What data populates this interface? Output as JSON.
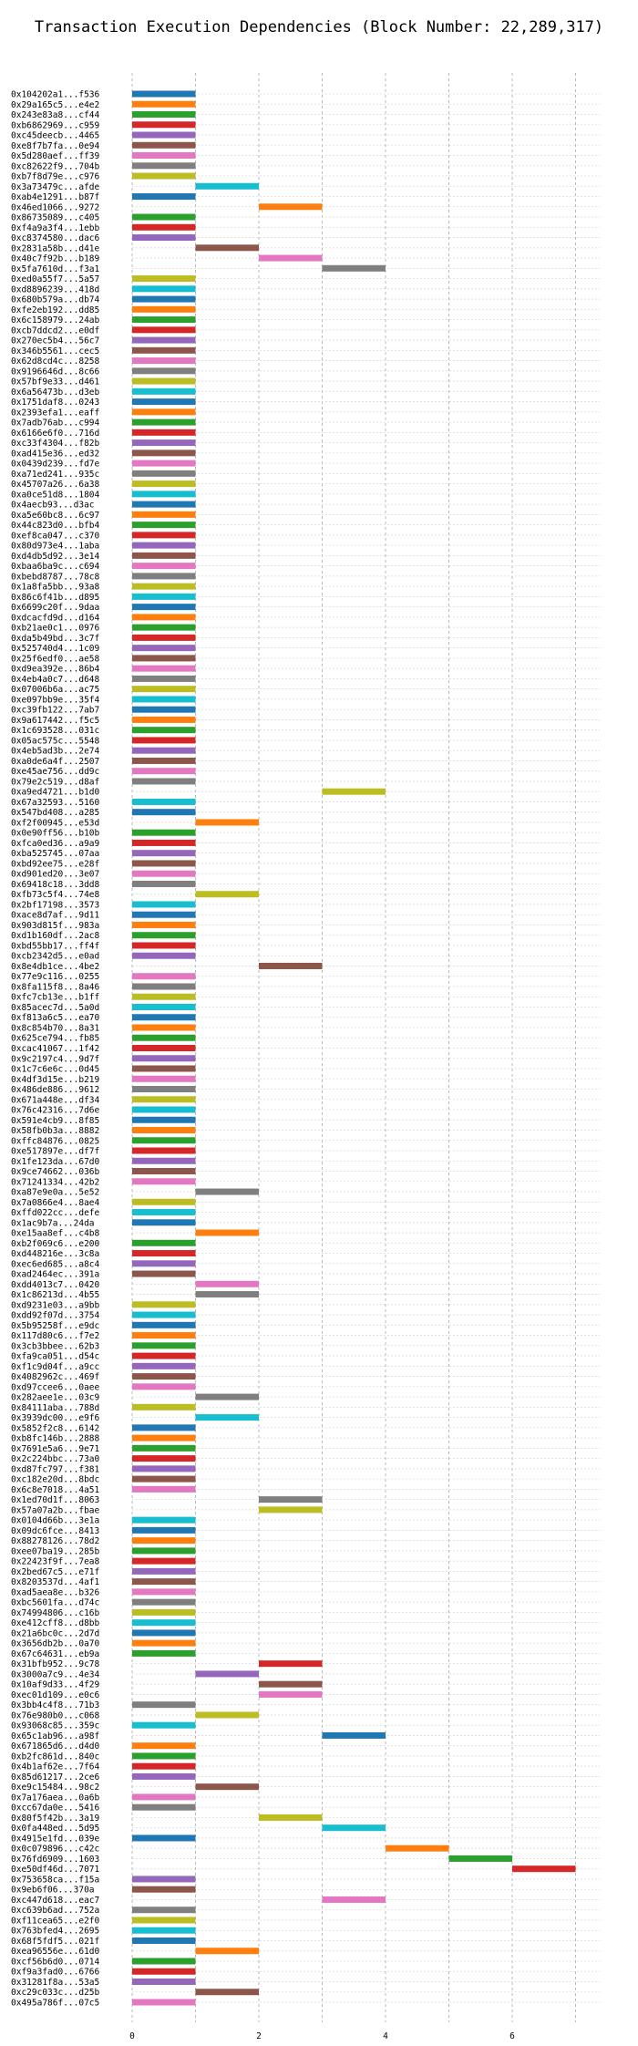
{
  "chart_data": {
    "type": "bar",
    "orientation": "horizontal-gantt",
    "title": "Transaction Execution Dependencies (Block Number: 22,289,317)",
    "xlabel": "",
    "ylabel": "",
    "xlim": [
      0,
      7.5
    ],
    "xticks": [
      0,
      2,
      4,
      6
    ],
    "grid": true,
    "colors": [
      "#1f77b4",
      "#ff7f0e",
      "#2ca02c",
      "#d62728",
      "#9467bd",
      "#8c564b",
      "#e377c2",
      "#7f7f7f",
      "#bcbd22",
      "#17becf"
    ],
    "transactions": [
      {
        "label": "0x104202a1...f536",
        "start": 0,
        "end": 1
      },
      {
        "label": "0x29a165c5...e4e2",
        "start": 0,
        "end": 1
      },
      {
        "label": "0x243e83a8...cf44",
        "start": 0,
        "end": 1
      },
      {
        "label": "0xb6862969...c959",
        "start": 0,
        "end": 1
      },
      {
        "label": "0xc45deecb...4465",
        "start": 0,
        "end": 1
      },
      {
        "label": "0xe8f7b7fa...0e94",
        "start": 0,
        "end": 1
      },
      {
        "label": "0x5d280aef...ff39",
        "start": 0,
        "end": 1
      },
      {
        "label": "0xc82622f9...704b",
        "start": 0,
        "end": 1
      },
      {
        "label": "0xb7f8d79e...c976",
        "start": 0,
        "end": 1
      },
      {
        "label": "0x3a73479c...afde",
        "start": 1,
        "end": 2
      },
      {
        "label": "0xab4e1291...b87f",
        "start": 0,
        "end": 1
      },
      {
        "label": "0x46ed1066...9272",
        "start": 2,
        "end": 3
      },
      {
        "label": "0x86735089...c405",
        "start": 0,
        "end": 1
      },
      {
        "label": "0xf4a9a3f4...1ebb",
        "start": 0,
        "end": 1
      },
      {
        "label": "0xc8374580...dac6",
        "start": 0,
        "end": 1
      },
      {
        "label": "0x2831a58b...d41e",
        "start": 1,
        "end": 2
      },
      {
        "label": "0x40c7f92b...b189",
        "start": 2,
        "end": 3
      },
      {
        "label": "0x5fa7610d...f3a1",
        "start": 3,
        "end": 4
      },
      {
        "label": "0xed0a55f7...5a57",
        "start": 0,
        "end": 1
      },
      {
        "label": "0xd8896239...418d",
        "start": 0,
        "end": 1
      },
      {
        "label": "0x680b579a...db74",
        "start": 0,
        "end": 1
      },
      {
        "label": "0xfe2eb192...dd85",
        "start": 0,
        "end": 1
      },
      {
        "label": "0x6c158979...24ab",
        "start": 0,
        "end": 1
      },
      {
        "label": "0xcb7ddcd2...e0df",
        "start": 0,
        "end": 1
      },
      {
        "label": "0x270ec5b4...56c7",
        "start": 0,
        "end": 1
      },
      {
        "label": "0x346b5561...cec5",
        "start": 0,
        "end": 1
      },
      {
        "label": "0x62d8cd4c...8258",
        "start": 0,
        "end": 1
      },
      {
        "label": "0x9196646d...8c66",
        "start": 0,
        "end": 1
      },
      {
        "label": "0x57bf9e33...d461",
        "start": 0,
        "end": 1
      },
      {
        "label": "0x6a56473b...d3eb",
        "start": 0,
        "end": 1
      },
      {
        "label": "0x1751daf8...0243",
        "start": 0,
        "end": 1
      },
      {
        "label": "0x2393efa1...eaff",
        "start": 0,
        "end": 1
      },
      {
        "label": "0x7adb76ab...c994",
        "start": 0,
        "end": 1
      },
      {
        "label": "0x6166e6f0...716d",
        "start": 0,
        "end": 1
      },
      {
        "label": "0xc33f4304...f82b",
        "start": 0,
        "end": 1
      },
      {
        "label": "0xad415e36...ed32",
        "start": 0,
        "end": 1
      },
      {
        "label": "0x0439d239...fd7e",
        "start": 0,
        "end": 1
      },
      {
        "label": "0xa71ed241...935c",
        "start": 0,
        "end": 1
      },
      {
        "label": "0x45707a26...6a38",
        "start": 0,
        "end": 1
      },
      {
        "label": "0xa0ce51d8...1804",
        "start": 0,
        "end": 1
      },
      {
        "label": "0x4aecb93...d3ac",
        "start": 0,
        "end": 1
      },
      {
        "label": "0xa5e60bc8...6c97",
        "start": 0,
        "end": 1
      },
      {
        "label": "0x44c823d0...bfb4",
        "start": 0,
        "end": 1
      },
      {
        "label": "0xef8ca047...c370",
        "start": 0,
        "end": 1
      },
      {
        "label": "0x80d973e4...1aba",
        "start": 0,
        "end": 1
      },
      {
        "label": "0xd4db5d92...3e14",
        "start": 0,
        "end": 1
      },
      {
        "label": "0xbaa6ba9c...c694",
        "start": 0,
        "end": 1
      },
      {
        "label": "0xbebd8787...78c8",
        "start": 0,
        "end": 1
      },
      {
        "label": "0x1a8fa5bb...93a8",
        "start": 0,
        "end": 1
      },
      {
        "label": "0x86c6f41b...d895",
        "start": 0,
        "end": 1
      },
      {
        "label": "0x6699c20f...9daa",
        "start": 0,
        "end": 1
      },
      {
        "label": "0xdcacfd9d...d164",
        "start": 0,
        "end": 1
      },
      {
        "label": "0xb21ae0c1...0976",
        "start": 0,
        "end": 1
      },
      {
        "label": "0xda5b49bd...3c7f",
        "start": 0,
        "end": 1
      },
      {
        "label": "0x525740d4...1c09",
        "start": 0,
        "end": 1
      },
      {
        "label": "0x25f6edf0...ae58",
        "start": 0,
        "end": 1
      },
      {
        "label": "0xd9ea392e...86b4",
        "start": 0,
        "end": 1
      },
      {
        "label": "0x4eb4a0c7...d648",
        "start": 0,
        "end": 1
      },
      {
        "label": "0x07006b6a...ac75",
        "start": 0,
        "end": 1
      },
      {
        "label": "0xe097bb9e...35f4",
        "start": 0,
        "end": 1
      },
      {
        "label": "0xc39fb122...7ab7",
        "start": 0,
        "end": 1
      },
      {
        "label": "0x9a617442...f5c5",
        "start": 0,
        "end": 1
      },
      {
        "label": "0x1c693528...031c",
        "start": 0,
        "end": 1
      },
      {
        "label": "0x05ac575c...5548",
        "start": 0,
        "end": 1
      },
      {
        "label": "0x4eb5ad3b...2e74",
        "start": 0,
        "end": 1
      },
      {
        "label": "0xa0de6a4f...2507",
        "start": 0,
        "end": 1
      },
      {
        "label": "0xe45ae756...dd9c",
        "start": 0,
        "end": 1
      },
      {
        "label": "0x79e2c519...d8af",
        "start": 0,
        "end": 1
      },
      {
        "label": "0xa9ed4721...b1d0",
        "start": 3,
        "end": 4
      },
      {
        "label": "0x67a32593...5160",
        "start": 0,
        "end": 1
      },
      {
        "label": "0x547bd408...a285",
        "start": 0,
        "end": 1
      },
      {
        "label": "0xf2f00945...e53d",
        "start": 1,
        "end": 2
      },
      {
        "label": "0x0e90ff56...b10b",
        "start": 0,
        "end": 1
      },
      {
        "label": "0xfca0ed36...a9a9",
        "start": 0,
        "end": 1
      },
      {
        "label": "0xba525745...07aa",
        "start": 0,
        "end": 1
      },
      {
        "label": "0xbd92ee75...e28f",
        "start": 0,
        "end": 1
      },
      {
        "label": "0xd901ed20...3e07",
        "start": 0,
        "end": 1
      },
      {
        "label": "0x69418c18...3dd8",
        "start": 0,
        "end": 1
      },
      {
        "label": "0xfb73c5f4...74e8",
        "start": 1,
        "end": 2
      },
      {
        "label": "0x2bf17198...3573",
        "start": 0,
        "end": 1
      },
      {
        "label": "0xace8d7af...9d11",
        "start": 0,
        "end": 1
      },
      {
        "label": "0x903d815f...983a",
        "start": 0,
        "end": 1
      },
      {
        "label": "0xd1b160df...2ac8",
        "start": 0,
        "end": 1
      },
      {
        "label": "0xbd55bb17...ff4f",
        "start": 0,
        "end": 1
      },
      {
        "label": "0xcb2342d5...e0ad",
        "start": 0,
        "end": 1
      },
      {
        "label": "0x8e4db1ce...4be2",
        "start": 2,
        "end": 3
      },
      {
        "label": "0x77e9c116...0255",
        "start": 0,
        "end": 1
      },
      {
        "label": "0x8fa115f8...8a46",
        "start": 0,
        "end": 1
      },
      {
        "label": "0xfc7cb13e...b1ff",
        "start": 0,
        "end": 1
      },
      {
        "label": "0x85acec7d...5a0d",
        "start": 0,
        "end": 1
      },
      {
        "label": "0xf813a6c5...ea70",
        "start": 0,
        "end": 1
      },
      {
        "label": "0x8c854b70...8a31",
        "start": 0,
        "end": 1
      },
      {
        "label": "0x625ce794...fb85",
        "start": 0,
        "end": 1
      },
      {
        "label": "0xcac41067...1f42",
        "start": 0,
        "end": 1
      },
      {
        "label": "0x9c2197c4...9d7f",
        "start": 0,
        "end": 1
      },
      {
        "label": "0x1c7c6e6c...0d45",
        "start": 0,
        "end": 1
      },
      {
        "label": "0x4df3d15e...b219",
        "start": 0,
        "end": 1
      },
      {
        "label": "0x486de886...9612",
        "start": 0,
        "end": 1
      },
      {
        "label": "0x671a448e...df34",
        "start": 0,
        "end": 1
      },
      {
        "label": "0x76c42316...7d6e",
        "start": 0,
        "end": 1
      },
      {
        "label": "0x591e4cb9...8f85",
        "start": 0,
        "end": 1
      },
      {
        "label": "0x58fb0b3a...8882",
        "start": 0,
        "end": 1
      },
      {
        "label": "0xffc84876...0825",
        "start": 0,
        "end": 1
      },
      {
        "label": "0xe517897e...df7f",
        "start": 0,
        "end": 1
      },
      {
        "label": "0x1fe123da...67d0",
        "start": 0,
        "end": 1
      },
      {
        "label": "0x9ce74662...036b",
        "start": 0,
        "end": 1
      },
      {
        "label": "0x71241334...42b2",
        "start": 0,
        "end": 1
      },
      {
        "label": "0xa87e9e0a...5e52",
        "start": 1,
        "end": 2
      },
      {
        "label": "0x7a0866e4...8ae4",
        "start": 0,
        "end": 1
      },
      {
        "label": "0xffd022cc...defe",
        "start": 0,
        "end": 1
      },
      {
        "label": "0x1ac9b7a...24da",
        "start": 0,
        "end": 1
      },
      {
        "label": "0xe15aa8ef...c4b8",
        "start": 1,
        "end": 2
      },
      {
        "label": "0xb2f069c6...e200",
        "start": 0,
        "end": 1
      },
      {
        "label": "0xd448216e...3c8a",
        "start": 0,
        "end": 1
      },
      {
        "label": "0xec6ed685...a8c4",
        "start": 0,
        "end": 1
      },
      {
        "label": "0xad2464ec...391a",
        "start": 0,
        "end": 1
      },
      {
        "label": "0xdd4013c7...0420",
        "start": 1,
        "end": 2
      },
      {
        "label": "0x1c86213d...4b55",
        "start": 1,
        "end": 2
      },
      {
        "label": "0xd9231e03...a9bb",
        "start": 0,
        "end": 1
      },
      {
        "label": "0xdd92f07d...3754",
        "start": 0,
        "end": 1
      },
      {
        "label": "0x5b95258f...e9dc",
        "start": 0,
        "end": 1
      },
      {
        "label": "0x117d80c6...f7e2",
        "start": 0,
        "end": 1
      },
      {
        "label": "0x3cb3bbee...62b3",
        "start": 0,
        "end": 1
      },
      {
        "label": "0xfa9ca051...d54c",
        "start": 0,
        "end": 1
      },
      {
        "label": "0xf1c9d04f...a9cc",
        "start": 0,
        "end": 1
      },
      {
        "label": "0x4082962c...469f",
        "start": 0,
        "end": 1
      },
      {
        "label": "0xd97ccee6...0aee",
        "start": 0,
        "end": 1
      },
      {
        "label": "0x282aee1e...03c9",
        "start": 1,
        "end": 2
      },
      {
        "label": "0x84111aba...788d",
        "start": 0,
        "end": 1
      },
      {
        "label": "0x3939dc00...e9f6",
        "start": 1,
        "end": 2
      },
      {
        "label": "0x5852f2c8...6142",
        "start": 0,
        "end": 1
      },
      {
        "label": "0xb8fc146b...2888",
        "start": 0,
        "end": 1
      },
      {
        "label": "0x7691e5a6...9e71",
        "start": 0,
        "end": 1
      },
      {
        "label": "0x2c224bbc...73a0",
        "start": 0,
        "end": 1
      },
      {
        "label": "0xd87fc797...f381",
        "start": 0,
        "end": 1
      },
      {
        "label": "0xc182e20d...8bdc",
        "start": 0,
        "end": 1
      },
      {
        "label": "0x6c8e7018...4a51",
        "start": 0,
        "end": 1
      },
      {
        "label": "0x1ed70d1f...8063",
        "start": 2,
        "end": 3
      },
      {
        "label": "0x57a07a2b...fbae",
        "start": 2,
        "end": 3
      },
      {
        "label": "0x0104d66b...3e1a",
        "start": 0,
        "end": 1
      },
      {
        "label": "0x09dc6fce...8413",
        "start": 0,
        "end": 1
      },
      {
        "label": "0x88278126...78d2",
        "start": 0,
        "end": 1
      },
      {
        "label": "0xee07ba19...285b",
        "start": 0,
        "end": 1
      },
      {
        "label": "0x22423f9f...7ea8",
        "start": 0,
        "end": 1
      },
      {
        "label": "0x2bed67c5...e71f",
        "start": 0,
        "end": 1
      },
      {
        "label": "0x8203537d...4af1",
        "start": 0,
        "end": 1
      },
      {
        "label": "0xad5aea8e...b326",
        "start": 0,
        "end": 1
      },
      {
        "label": "0xbc5601fa...d74c",
        "start": 0,
        "end": 1
      },
      {
        "label": "0x74994806...c16b",
        "start": 0,
        "end": 1
      },
      {
        "label": "0xe412cff8...d8bb",
        "start": 0,
        "end": 1
      },
      {
        "label": "0x21a6bc0c...2d7d",
        "start": 0,
        "end": 1
      },
      {
        "label": "0x3656db2b...0a70",
        "start": 0,
        "end": 1
      },
      {
        "label": "0x67c64631...eb9a",
        "start": 0,
        "end": 1
      },
      {
        "label": "0x31bfb952...9c78",
        "start": 2,
        "end": 3
      },
      {
        "label": "0x3000a7c9...4e34",
        "start": 1,
        "end": 2
      },
      {
        "label": "0x10af9d33...4f29",
        "start": 2,
        "end": 3
      },
      {
        "label": "0xec01d109...e0c6",
        "start": 2,
        "end": 3
      },
      {
        "label": "0x3bb4c4f8...71b3",
        "start": 0,
        "end": 1
      },
      {
        "label": "0x76e980b0...c068",
        "start": 1,
        "end": 2
      },
      {
        "label": "0x93068c85...359c",
        "start": 0,
        "end": 1
      },
      {
        "label": "0x65c1ab96...a98f",
        "start": 3,
        "end": 4
      },
      {
        "label": "0x671865d6...d4d0",
        "start": 0,
        "end": 1
      },
      {
        "label": "0xb2fc861d...840c",
        "start": 0,
        "end": 1
      },
      {
        "label": "0x4b1af62e...7f64",
        "start": 0,
        "end": 1
      },
      {
        "label": "0x85d61217...2ce6",
        "start": 0,
        "end": 1
      },
      {
        "label": "0xe9c15484...98c2",
        "start": 1,
        "end": 2
      },
      {
        "label": "0x7a176aea...0a6b",
        "start": 0,
        "end": 1
      },
      {
        "label": "0xcc67da0e...5416",
        "start": 0,
        "end": 1
      },
      {
        "label": "0x80f5f42b...3a19",
        "start": 2,
        "end": 3
      },
      {
        "label": "0x0fa448ed...5d95",
        "start": 3,
        "end": 4
      },
      {
        "label": "0x4915e1fd...039e",
        "start": 0,
        "end": 1
      },
      {
        "label": "0x0c079896...c42c",
        "start": 4,
        "end": 5
      },
      {
        "label": "0x76fd6909...1603",
        "start": 5,
        "end": 6
      },
      {
        "label": "0xe50df46d...7071",
        "start": 6,
        "end": 7
      },
      {
        "label": "0x753658ca...f15a",
        "start": 0,
        "end": 1
      },
      {
        "label": "0x9eb6f06...370a",
        "start": 0,
        "end": 1
      },
      {
        "label": "0xc447d618...eac7",
        "start": 3,
        "end": 4
      },
      {
        "label": "0xc639b6ad...752a",
        "start": 0,
        "end": 1
      },
      {
        "label": "0xf11cea65...e2f0",
        "start": 0,
        "end": 1
      },
      {
        "label": "0x763bfed4...2695",
        "start": 0,
        "end": 1
      },
      {
        "label": "0x68f5fdf5...021f",
        "start": 0,
        "end": 1
      },
      {
        "label": "0xea96556e...61d0",
        "start": 1,
        "end": 2
      },
      {
        "label": "0xcf56b6d0...0714",
        "start": 0,
        "end": 1
      },
      {
        "label": "0xf9a3fad0...6766",
        "start": 0,
        "end": 1
      },
      {
        "label": "0x31281f8a...53a5",
        "start": 0,
        "end": 1
      },
      {
        "label": "0xc29c033c...d25b",
        "start": 1,
        "end": 2
      },
      {
        "label": "0x495a786f...07c5",
        "start": 0,
        "end": 1
      }
    ]
  }
}
